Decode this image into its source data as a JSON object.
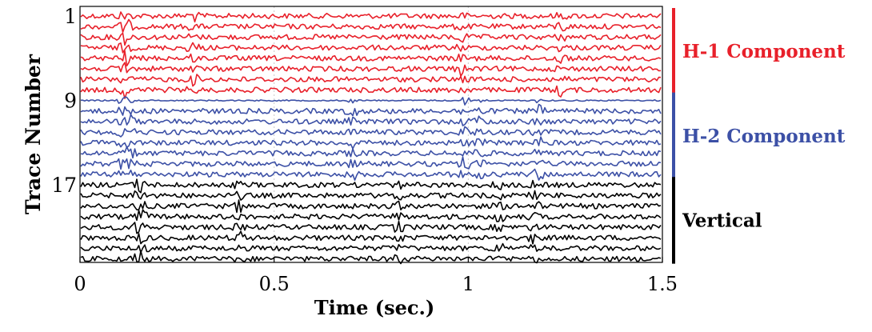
{
  "chart_data": {
    "type": "line",
    "xlabel": "Time (sec.)",
    "ylabel": "Trace Number",
    "xlim": [
      0,
      1.5
    ],
    "xticks": [
      {
        "value": 0,
        "label": "0"
      },
      {
        "value": 0.5,
        "label": "0.5"
      },
      {
        "value": 1,
        "label": "1"
      },
      {
        "value": 1.5,
        "label": "1.5"
      }
    ],
    "yticks": [
      {
        "trace": 1,
        "label": "1"
      },
      {
        "trace": 9,
        "label": "9"
      },
      {
        "trace": 17,
        "label": "17"
      }
    ],
    "trace_count": 24,
    "grid": true,
    "series": [
      {
        "name": "H-1 Component",
        "color": "#e8202a",
        "traces": [
          1,
          8
        ],
        "events_sec": [
          0.11,
          0.12,
          0.29,
          0.98,
          1.24
        ]
      },
      {
        "name": "H-2 Component",
        "color": "#3c50a6",
        "traces": [
          9,
          16
        ],
        "events_sec": [
          0.11,
          0.13,
          0.7,
          0.99,
          1.03,
          1.18
        ]
      },
      {
        "name": "Vertical",
        "color": "#000000",
        "traces": [
          17,
          24
        ],
        "events_sec": [
          0.15,
          0.16,
          0.41,
          0.82,
          1.08,
          1.17
        ]
      }
    ]
  }
}
